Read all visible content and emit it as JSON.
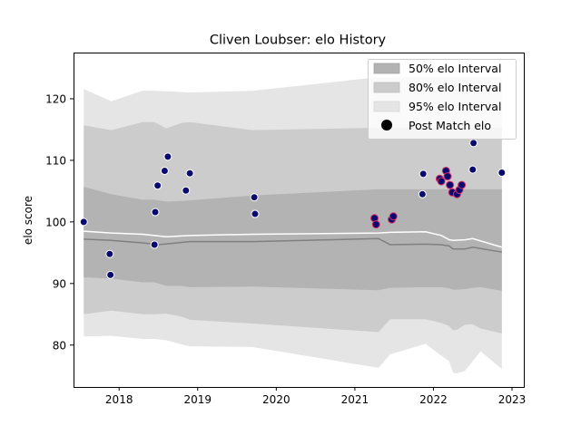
{
  "chart_data": {
    "type": "scatter",
    "title": "Cliven Loubser: elo History",
    "xlabel": "",
    "ylabel": "elo score",
    "xlim": [
      2017.42,
      2023.15
    ],
    "ylim": [
      73.2,
      127.5
    ],
    "x_ticks": [
      2018,
      2019,
      2020,
      2021,
      2022,
      2023
    ],
    "x_tick_labels": [
      "2018",
      "2019",
      "2020",
      "2021",
      "2022",
      "2023"
    ],
    "y_ticks": [
      80,
      90,
      100,
      110,
      120
    ],
    "y_tick_labels": [
      "80",
      "90",
      "100",
      "110",
      "120"
    ],
    "grid": false,
    "legend": {
      "placement": "top-right",
      "entries": [
        "50% elo Interval",
        "80% elo Interval",
        "95% elo Interval",
        "Post Match elo"
      ]
    },
    "colors": {
      "band50": "#b3b3b3",
      "band80": "#cccccc",
      "band95": "#e5e5e5",
      "median_line": "#808080",
      "mean_line": "#ffffff",
      "point_fill": "#0a0a6e",
      "point_edge_normal": "#ffffff",
      "point_edge_highlight": "#d4306a"
    },
    "bands": {
      "x": [
        2017.55,
        2017.9,
        2018.3,
        2018.45,
        2018.6,
        2018.8,
        2018.9,
        2019.7,
        2021.3,
        2021.45,
        2021.9,
        2022.1,
        2022.2,
        2022.25,
        2022.3,
        2022.4,
        2022.5,
        2022.6,
        2022.87
      ],
      "upper95": [
        121.6,
        119.6,
        121.3,
        121.3,
        121.2,
        121.1,
        121.0,
        121.3,
        123.5,
        123.5,
        123.5,
        123.5,
        123.5,
        123.5,
        123.5,
        123.5,
        123.5,
        123.5,
        123.5
      ],
      "upper80": [
        115.7,
        114.9,
        116.2,
        116.2,
        115.2,
        116.1,
        116.2,
        114.9,
        115.3,
        115.3,
        115.3,
        115.3,
        115.3,
        115.3,
        115.3,
        115.3,
        115.3,
        115.3,
        115.3
      ],
      "upper50": [
        105.7,
        104.5,
        103.6,
        103.6,
        103.3,
        103.4,
        103.5,
        104.3,
        105.3,
        105.3,
        105.3,
        105.3,
        105.3,
        105.3,
        105.3,
        105.3,
        105.3,
        105.3,
        105.3
      ],
      "lower50": [
        91.0,
        90.8,
        90.2,
        90.2,
        89.6,
        89.6,
        89.4,
        89.5,
        88.9,
        89.3,
        89.4,
        89.4,
        89.2,
        89.0,
        89.0,
        89.1,
        89.3,
        89.4,
        88.8
      ],
      "lower80": [
        85.0,
        85.6,
        85.0,
        85.0,
        85.1,
        84.6,
        84.1,
        83.5,
        82.1,
        84.2,
        84.2,
        83.6,
        83.1,
        82.4,
        82.5,
        83.3,
        83.4,
        82.7,
        81.9
      ],
      "lower95": [
        81.4,
        81.5,
        81.0,
        81.0,
        80.8,
        80.1,
        79.8,
        79.7,
        76.3,
        78.5,
        80.2,
        78.3,
        77.4,
        75.5,
        75.4,
        75.8,
        77.4,
        79.0,
        76.1
      ]
    },
    "median_line": {
      "x": [
        2017.55,
        2017.9,
        2018.3,
        2018.5,
        2018.9,
        2019.7,
        2021.3,
        2021.45,
        2021.9,
        2022.1,
        2022.2,
        2022.25,
        2022.4,
        2022.5,
        2022.87
      ],
      "y": [
        97.2,
        97.0,
        96.6,
        96.3,
        96.8,
        96.8,
        97.3,
        96.3,
        96.4,
        96.3,
        96.1,
        95.6,
        95.6,
        95.9,
        95.1
      ]
    },
    "mean_line": {
      "x": [
        2017.55,
        2017.9,
        2018.3,
        2018.6,
        2018.9,
        2019.7,
        2021.3,
        2021.45,
        2021.9,
        2022.1,
        2022.2,
        2022.25,
        2022.4,
        2022.5,
        2022.87
      ],
      "y": [
        98.5,
        98.2,
        98.0,
        97.6,
        97.8,
        98.0,
        98.2,
        98.3,
        98.4,
        97.8,
        97.1,
        97.0,
        97.1,
        97.3,
        95.9
      ]
    },
    "points": [
      {
        "x": 2017.55,
        "y": 100.0,
        "highlight": false
      },
      {
        "x": 2017.88,
        "y": 94.8,
        "highlight": false
      },
      {
        "x": 2017.89,
        "y": 91.4,
        "highlight": false
      },
      {
        "x": 2018.45,
        "y": 96.3,
        "highlight": false
      },
      {
        "x": 2018.46,
        "y": 101.6,
        "highlight": false
      },
      {
        "x": 2018.49,
        "y": 105.9,
        "highlight": false
      },
      {
        "x": 2018.58,
        "y": 108.3,
        "highlight": false
      },
      {
        "x": 2018.62,
        "y": 110.6,
        "highlight": false
      },
      {
        "x": 2018.85,
        "y": 105.1,
        "highlight": false
      },
      {
        "x": 2018.9,
        "y": 107.9,
        "highlight": false
      },
      {
        "x": 2019.72,
        "y": 104.0,
        "highlight": false
      },
      {
        "x": 2019.73,
        "y": 101.3,
        "highlight": false
      },
      {
        "x": 2021.25,
        "y": 100.6,
        "highlight": true
      },
      {
        "x": 2021.27,
        "y": 99.6,
        "highlight": true
      },
      {
        "x": 2021.47,
        "y": 100.4,
        "highlight": true
      },
      {
        "x": 2021.49,
        "y": 100.9,
        "highlight": true
      },
      {
        "x": 2021.86,
        "y": 104.5,
        "highlight": false
      },
      {
        "x": 2021.87,
        "y": 107.8,
        "highlight": false
      },
      {
        "x": 2022.08,
        "y": 107.0,
        "highlight": true
      },
      {
        "x": 2022.1,
        "y": 106.6,
        "highlight": true
      },
      {
        "x": 2022.16,
        "y": 108.3,
        "highlight": true
      },
      {
        "x": 2022.18,
        "y": 107.4,
        "highlight": true
      },
      {
        "x": 2022.21,
        "y": 106.0,
        "highlight": true
      },
      {
        "x": 2022.24,
        "y": 104.8,
        "highlight": true
      },
      {
        "x": 2022.3,
        "y": 104.5,
        "highlight": true
      },
      {
        "x": 2022.33,
        "y": 105.2,
        "highlight": true
      },
      {
        "x": 2022.36,
        "y": 106.0,
        "highlight": true
      },
      {
        "x": 2022.5,
        "y": 108.5,
        "highlight": false
      },
      {
        "x": 2022.51,
        "y": 112.8,
        "highlight": false
      },
      {
        "x": 2022.87,
        "y": 108.0,
        "highlight": false
      }
    ]
  }
}
